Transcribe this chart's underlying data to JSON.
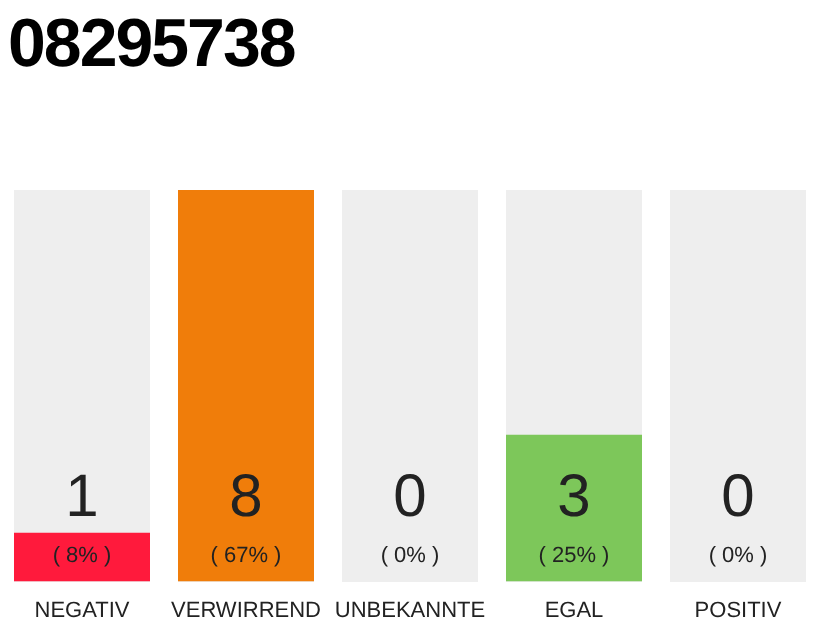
{
  "chart_data": {
    "type": "bar",
    "title": "08295738",
    "categories": [
      "NEGATIV",
      "VERWIRREND",
      "UNBEKANNTE",
      "EGAL",
      "POSITIV"
    ],
    "values": [
      1,
      8,
      0,
      3,
      0
    ],
    "colors": [
      "#ff1a3c",
      "#f07d0a",
      "#cccccc",
      "#7dc75a",
      "#cccccc"
    ],
    "data_labels": true,
    "annotations": [
      "( 8% )",
      "( 67% )",
      "( 0% )",
      "( 25% )",
      "( 0% )"
    ],
    "grid": false,
    "legend": false
  }
}
